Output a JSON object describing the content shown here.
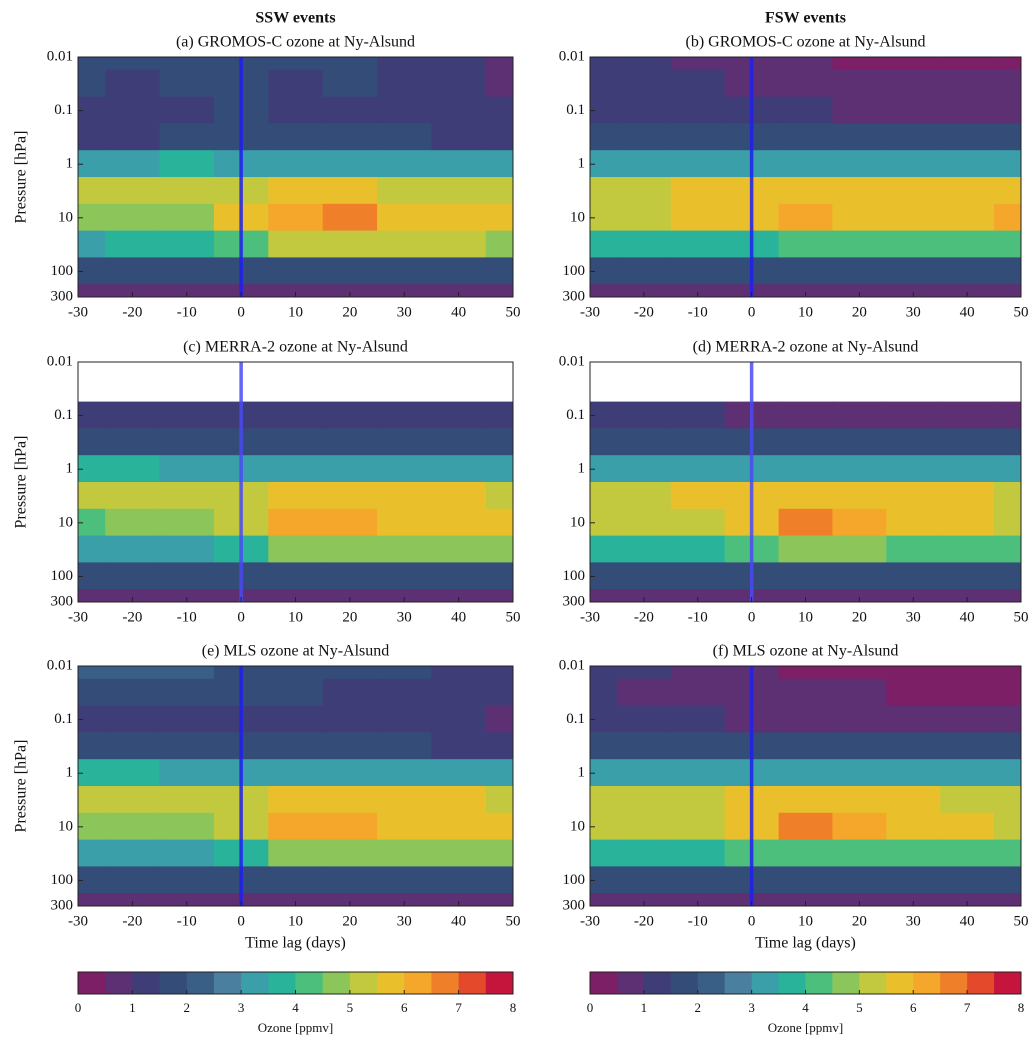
{
  "chart_data": [
    {
      "type": "contour",
      "column_title": "SSW events",
      "title": "(a) GROMOS-C ozone at Ny-Alsund",
      "ylabel": "Pressure [hPa]",
      "log_y": true,
      "x": [
        -30,
        -20,
        -10,
        0,
        10,
        20,
        30,
        40,
        50
      ],
      "y": [
        0.01,
        0.03,
        0.1,
        0.3,
        1,
        3,
        10,
        30,
        100,
        300
      ],
      "z": [
        [
          1.6,
          1.6,
          1.7,
          1.8,
          1.5,
          1.6,
          1.4,
          1.2,
          0.8
        ],
        [
          1.5,
          1.4,
          1.5,
          1.6,
          1.4,
          1.5,
          1.3,
          1.1,
          0.9
        ],
        [
          1.4,
          1.3,
          1.3,
          1.5,
          1.3,
          1.3,
          1.2,
          1.1,
          1.0
        ],
        [
          1.4,
          1.4,
          1.6,
          1.5,
          1.5,
          1.5,
          1.5,
          1.4,
          1.3
        ],
        [
          3.3,
          3.4,
          3.5,
          3.0,
          3.0,
          3.1,
          3.1,
          3.2,
          3.1
        ],
        [
          5.2,
          5.0,
          5.1,
          5.3,
          5.6,
          5.5,
          5.4,
          5.4,
          5.2
        ],
        [
          4.5,
          4.6,
          4.8,
          5.8,
          6.0,
          6.6,
          5.6,
          5.7,
          5.6
        ],
        [
          3.4,
          3.5,
          3.6,
          4.0,
          5.0,
          5.0,
          5.1,
          5.0,
          4.9
        ],
        [
          1.6,
          1.7,
          1.6,
          1.6,
          1.7,
          1.7,
          1.6,
          1.6,
          1.6
        ],
        [
          0.8,
          0.8,
          0.8,
          0.8,
          0.8,
          0.8,
          0.8,
          0.8,
          0.8
        ]
      ],
      "xlim": [
        -30,
        50
      ],
      "ylim": [
        300,
        0.01
      ],
      "xticks": [
        -30,
        -20,
        -10,
        0,
        10,
        20,
        30,
        40,
        50
      ],
      "yticks": [
        0.01,
        0.1,
        1,
        10,
        100,
        300
      ],
      "vline": {
        "x": 0,
        "color": "#1f1ff0"
      },
      "clim": [
        0,
        8
      ],
      "colors": [
        "#7d1f66",
        "#5d2f73",
        "#3f3d78",
        "#344c78",
        "#3a5f86",
        "#4a7fa0",
        "#3a9fa8",
        "#2ab39b",
        "#4cbf7d",
        "#8cc65a",
        "#c2c93f",
        "#e9c02c",
        "#f4a72a",
        "#f07f2a",
        "#e4492b",
        "#c6153d"
      ]
    },
    {
      "type": "contour",
      "column_title": "FSW events",
      "title": "(b) GROMOS-C ozone at Ny-Alsund",
      "log_y": true,
      "x": [
        -30,
        -20,
        -10,
        0,
        10,
        20,
        30,
        40,
        50
      ],
      "y": [
        0.01,
        0.03,
        0.1,
        0.3,
        1,
        3,
        10,
        30,
        100,
        300
      ],
      "z": [
        [
          1.2,
          1.1,
          0.9,
          0.8,
          0.6,
          0.3,
          0.3,
          0.3,
          0.3
        ],
        [
          1.3,
          1.2,
          1.0,
          0.9,
          0.8,
          0.6,
          0.5,
          0.5,
          0.5
        ],
        [
          1.4,
          1.3,
          1.2,
          1.1,
          1.0,
          0.9,
          0.9,
          0.9,
          0.9
        ],
        [
          1.7,
          1.6,
          1.6,
          1.5,
          1.5,
          1.5,
          1.5,
          1.5,
          1.5
        ],
        [
          3.4,
          3.3,
          3.3,
          3.3,
          3.4,
          3.4,
          3.4,
          3.4,
          3.4
        ],
        [
          5.3,
          5.4,
          5.5,
          5.6,
          5.6,
          5.8,
          5.7,
          5.7,
          5.8
        ],
        [
          5.0,
          5.2,
          5.6,
          5.8,
          6.4,
          5.8,
          5.9,
          5.8,
          6.1
        ],
        [
          3.6,
          3.7,
          3.8,
          3.9,
          4.2,
          4.2,
          4.2,
          4.2,
          4.2
        ],
        [
          1.5,
          1.5,
          1.5,
          1.5,
          1.5,
          1.5,
          1.5,
          1.5,
          1.5
        ],
        [
          0.8,
          0.8,
          0.8,
          0.8,
          0.8,
          0.8,
          0.8,
          0.8,
          0.8
        ]
      ],
      "xlim": [
        -30,
        50
      ],
      "ylim": [
        300,
        0.01
      ],
      "xticks": [
        -30,
        -20,
        -10,
        0,
        10,
        20,
        30,
        40,
        50
      ],
      "yticks": [
        0.01,
        0.1,
        1,
        10,
        100,
        300
      ],
      "vline": {
        "x": 0,
        "color": "#1f1ff0"
      },
      "clim": [
        0,
        8
      ],
      "colors": [
        "#7d1f66",
        "#5d2f73",
        "#3f3d78",
        "#344c78",
        "#3a5f86",
        "#4a7fa0",
        "#3a9fa8",
        "#2ab39b",
        "#4cbf7d",
        "#8cc65a",
        "#c2c93f",
        "#e9c02c",
        "#f4a72a",
        "#f07f2a",
        "#e4492b",
        "#c6153d"
      ]
    },
    {
      "type": "contour",
      "title": "(c) MERRA-2 ozone at Ny-Alsund",
      "ylabel": "Pressure [hPa]",
      "log_y": true,
      "x": [
        -30,
        -20,
        -10,
        0,
        10,
        20,
        30,
        40,
        50
      ],
      "y": [
        0.01,
        0.03,
        0.1,
        0.3,
        1,
        3,
        10,
        30,
        100,
        300
      ],
      "z": [
        [
          null,
          null,
          null,
          null,
          null,
          null,
          null,
          null,
          null
        ],
        [
          null,
          null,
          null,
          null,
          null,
          null,
          null,
          null,
          null
        ],
        [
          1.3,
          1.2,
          1.3,
          1.3,
          1.3,
          1.3,
          1.3,
          1.2,
          1.1
        ],
        [
          1.6,
          1.6,
          1.6,
          1.6,
          1.6,
          1.6,
          1.6,
          1.6,
          1.5
        ],
        [
          3.6,
          3.5,
          3.4,
          3.3,
          3.4,
          3.4,
          3.3,
          3.4,
          3.3
        ],
        [
          5.2,
          5.1,
          5.0,
          5.3,
          5.6,
          5.6,
          5.5,
          5.5,
          5.4
        ],
        [
          4.4,
          4.6,
          4.7,
          5.4,
          6.3,
          6.2,
          5.7,
          5.6,
          5.5
        ],
        [
          3.2,
          3.3,
          3.4,
          3.6,
          4.8,
          4.9,
          4.8,
          4.8,
          4.7
        ],
        [
          1.6,
          1.6,
          1.6,
          1.6,
          1.6,
          1.6,
          1.6,
          1.6,
          1.6
        ],
        [
          0.5,
          0.5,
          0.5,
          0.5,
          0.5,
          0.5,
          0.5,
          0.5,
          0.5
        ]
      ],
      "xlim": [
        -30,
        50
      ],
      "ylim": [
        300,
        0.01
      ],
      "xticks": [
        -30,
        -20,
        -10,
        0,
        10,
        20,
        30,
        40,
        50
      ],
      "yticks": [
        0.01,
        0.1,
        1,
        10,
        100,
        300
      ],
      "vline": {
        "x": 0,
        "color": "#4a4af5"
      },
      "clim": [
        0,
        8
      ],
      "colors": [
        "#7d1f66",
        "#5d2f73",
        "#3f3d78",
        "#344c78",
        "#3a5f86",
        "#4a7fa0",
        "#3a9fa8",
        "#2ab39b",
        "#4cbf7d",
        "#8cc65a",
        "#c2c93f",
        "#e9c02c",
        "#f4a72a",
        "#f07f2a",
        "#e4492b",
        "#c6153d"
      ]
    },
    {
      "type": "contour",
      "title": "(d) MERRA-2 ozone at Ny-Alsund",
      "log_y": true,
      "x": [
        -30,
        -20,
        -10,
        0,
        10,
        20,
        30,
        40,
        50
      ],
      "y": [
        0.01,
        0.03,
        0.1,
        0.3,
        1,
        3,
        10,
        30,
        100,
        300
      ],
      "z": [
        [
          null,
          null,
          null,
          null,
          null,
          null,
          null,
          null,
          null
        ],
        [
          null,
          null,
          null,
          null,
          null,
          null,
          null,
          null,
          null
        ],
        [
          1.2,
          1.1,
          1.0,
          0.9,
          0.8,
          0.6,
          0.6,
          0.6,
          0.6
        ],
        [
          1.6,
          1.6,
          1.6,
          1.6,
          1.6,
          1.6,
          1.6,
          1.6,
          1.6
        ],
        [
          3.3,
          3.3,
          3.3,
          3.3,
          3.3,
          3.3,
          3.3,
          3.3,
          3.3
        ],
        [
          5.3,
          5.4,
          5.5,
          5.6,
          5.7,
          5.6,
          5.5,
          5.5,
          5.4
        ],
        [
          5.0,
          5.1,
          5.3,
          5.8,
          6.8,
          6.0,
          5.7,
          5.5,
          5.4
        ],
        [
          3.5,
          3.6,
          3.7,
          4.0,
          4.6,
          4.5,
          4.4,
          4.4,
          4.3
        ],
        [
          1.6,
          1.6,
          1.6,
          1.6,
          1.6,
          1.6,
          1.6,
          1.6,
          1.6
        ],
        [
          0.5,
          0.5,
          0.5,
          0.5,
          0.5,
          0.5,
          0.5,
          0.5,
          0.5
        ]
      ],
      "xlim": [
        -30,
        50
      ],
      "ylim": [
        300,
        0.01
      ],
      "xticks": [
        -30,
        -20,
        -10,
        0,
        10,
        20,
        30,
        40,
        50
      ],
      "yticks": [
        0.01,
        0.1,
        1,
        10,
        100,
        300
      ],
      "vline": {
        "x": 0,
        "color": "#4a4af5"
      },
      "clim": [
        0,
        8
      ],
      "colors": [
        "#7d1f66",
        "#5d2f73",
        "#3f3d78",
        "#344c78",
        "#3a5f86",
        "#4a7fa0",
        "#3a9fa8",
        "#2ab39b",
        "#4cbf7d",
        "#8cc65a",
        "#c2c93f",
        "#e9c02c",
        "#f4a72a",
        "#f07f2a",
        "#e4492b",
        "#c6153d"
      ]
    },
    {
      "type": "contour",
      "title": "(e) MLS ozone at Ny-Alsund",
      "ylabel": "Pressure [hPa]",
      "xlabel": "Time lag (days)",
      "log_y": true,
      "x": [
        -30,
        -20,
        -10,
        0,
        10,
        20,
        30,
        40,
        50
      ],
      "y": [
        0.01,
        0.03,
        0.1,
        0.3,
        1,
        3,
        10,
        30,
        100,
        300
      ],
      "z": [
        [
          2.2,
          2.3,
          2.1,
          1.9,
          1.9,
          1.8,
          1.5,
          1.2,
          1.0
        ],
        [
          1.6,
          1.6,
          1.6,
          1.6,
          1.5,
          1.4,
          1.3,
          1.1,
          1.0
        ],
        [
          1.2,
          1.1,
          1.1,
          1.2,
          1.2,
          1.2,
          1.1,
          1.0,
          0.9
        ],
        [
          1.5,
          1.5,
          1.5,
          1.5,
          1.5,
          1.5,
          1.5,
          1.4,
          1.4
        ],
        [
          3.5,
          3.5,
          3.4,
          3.3,
          3.4,
          3.4,
          3.3,
          3.4,
          3.3
        ],
        [
          5.0,
          5.0,
          5.0,
          5.3,
          5.6,
          5.6,
          5.5,
          5.5,
          5.4
        ],
        [
          4.6,
          4.6,
          4.7,
          5.4,
          6.3,
          6.4,
          5.8,
          5.7,
          5.6
        ],
        [
          3.2,
          3.3,
          3.4,
          3.6,
          4.8,
          4.9,
          4.8,
          4.8,
          4.7
        ],
        [
          1.6,
          1.6,
          1.6,
          1.6,
          1.6,
          1.6,
          1.6,
          1.6,
          1.6
        ],
        [
          0.5,
          0.5,
          0.5,
          0.5,
          0.5,
          0.5,
          0.5,
          0.5,
          0.5
        ]
      ],
      "xlim": [
        -30,
        50
      ],
      "ylim": [
        300,
        0.01
      ],
      "xticks": [
        -30,
        -20,
        -10,
        0,
        10,
        20,
        30,
        40,
        50
      ],
      "yticks": [
        0.01,
        0.1,
        1,
        10,
        100,
        300
      ],
      "vline": {
        "x": 0,
        "color": "#1f1ff0"
      },
      "clim": [
        0,
        8
      ],
      "colors": [
        "#7d1f66",
        "#5d2f73",
        "#3f3d78",
        "#344c78",
        "#3a5f86",
        "#4a7fa0",
        "#3a9fa8",
        "#2ab39b",
        "#4cbf7d",
        "#8cc65a",
        "#c2c93f",
        "#e9c02c",
        "#f4a72a",
        "#f07f2a",
        "#e4492b",
        "#c6153d"
      ],
      "colorbar": {
        "ticks": [
          0,
          1,
          2,
          3,
          4,
          5,
          6,
          7,
          8
        ],
        "label": "Ozone [ppmv]"
      }
    },
    {
      "type": "contour",
      "title": "(f) MLS ozone at Ny-Alsund",
      "xlabel": "Time lag (days)",
      "log_y": true,
      "x": [
        -30,
        -20,
        -10,
        0,
        10,
        20,
        30,
        40,
        50
      ],
      "y": [
        0.01,
        0.03,
        0.1,
        0.3,
        1,
        3,
        10,
        30,
        100,
        300
      ],
      "z": [
        [
          1.2,
          1.0,
          0.8,
          0.6,
          0.4,
          0.3,
          0.2,
          0.2,
          0.2
        ],
        [
          1.0,
          0.9,
          0.8,
          0.7,
          0.6,
          0.5,
          0.4,
          0.4,
          0.4
        ],
        [
          1.2,
          1.1,
          1.0,
          0.9,
          0.9,
          0.8,
          0.8,
          0.8,
          0.8
        ],
        [
          1.6,
          1.6,
          1.6,
          1.6,
          1.6,
          1.6,
          1.6,
          1.6,
          1.6
        ],
        [
          3.3,
          3.3,
          3.3,
          3.3,
          3.3,
          3.3,
          3.3,
          3.3,
          3.3
        ],
        [
          5.2,
          5.3,
          5.4,
          5.5,
          5.6,
          5.6,
          5.5,
          5.4,
          5.3
        ],
        [
          5.0,
          5.2,
          5.4,
          5.8,
          6.9,
          6.0,
          5.6,
          5.5,
          5.4
        ],
        [
          3.6,
          3.6,
          3.8,
          4.0,
          4.4,
          4.4,
          4.3,
          4.3,
          4.2
        ],
        [
          1.6,
          1.6,
          1.6,
          1.6,
          1.6,
          1.6,
          1.6,
          1.6,
          1.6
        ],
        [
          0.5,
          0.5,
          0.5,
          0.5,
          0.5,
          0.5,
          0.5,
          0.5,
          0.5
        ]
      ],
      "xlim": [
        -30,
        50
      ],
      "ylim": [
        300,
        0.01
      ],
      "xticks": [
        -30,
        -20,
        -10,
        0,
        10,
        20,
        30,
        40,
        50
      ],
      "yticks": [
        0.01,
        0.1,
        1,
        10,
        100,
        300
      ],
      "vline": {
        "x": 0,
        "color": "#1f1ff0"
      },
      "clim": [
        0,
        8
      ],
      "colors": [
        "#7d1f66",
        "#5d2f73",
        "#3f3d78",
        "#344c78",
        "#3a5f86",
        "#4a7fa0",
        "#3a9fa8",
        "#2ab39b",
        "#4cbf7d",
        "#8cc65a",
        "#c2c93f",
        "#e9c02c",
        "#f4a72a",
        "#f07f2a",
        "#e4492b",
        "#c6153d"
      ],
      "colorbar": {
        "ticks": [
          0,
          1,
          2,
          3,
          4,
          5,
          6,
          7,
          8
        ],
        "label": "Ozone [ppmv]"
      }
    }
  ]
}
